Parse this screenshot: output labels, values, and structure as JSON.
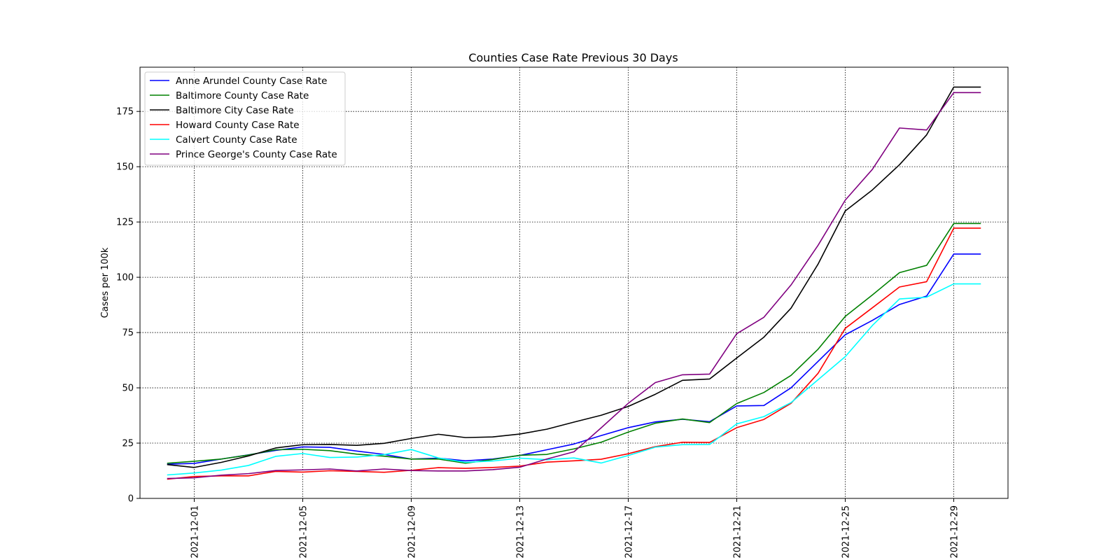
{
  "chart_data": {
    "type": "line",
    "title": "Counties Case Rate Previous 30 Days",
    "xlabel": "",
    "ylabel": "Cases per 100k",
    "x_start": "2021-11-30",
    "x": [
      "2021-11-30",
      "2021-12-01",
      "2021-12-02",
      "2021-12-03",
      "2021-12-04",
      "2021-12-05",
      "2021-12-06",
      "2021-12-07",
      "2021-12-08",
      "2021-12-09",
      "2021-12-10",
      "2021-12-11",
      "2021-12-12",
      "2021-12-13",
      "2021-12-14",
      "2021-12-15",
      "2021-12-16",
      "2021-12-17",
      "2021-12-18",
      "2021-12-19",
      "2021-12-20",
      "2021-12-21",
      "2021-12-22",
      "2021-12-23",
      "2021-12-24",
      "2021-12-25",
      "2021-12-26",
      "2021-12-27",
      "2021-12-28",
      "2021-12-29",
      "2021-12-30"
    ],
    "xticks": [
      "2021-12-01",
      "2021-12-05",
      "2021-12-09",
      "2021-12-13",
      "2021-12-17",
      "2021-12-21",
      "2021-12-25",
      "2021-12-29"
    ],
    "xlim": [
      "2021-11-29",
      "2021-12-31"
    ],
    "yticks": [
      0,
      25,
      50,
      75,
      100,
      125,
      150,
      175
    ],
    "ylim": [
      0,
      195
    ],
    "grid": true,
    "legend_position": "top-left",
    "series": [
      {
        "name": "Anne Arundel County Case Rate",
        "color": "#0000ff",
        "values": [
          15.5,
          15.8,
          17.8,
          19.7,
          21.7,
          23.3,
          23.1,
          21.4,
          19.9,
          17.8,
          18.2,
          17.0,
          17.8,
          19.4,
          22.0,
          24.6,
          28.4,
          32.0,
          34.6,
          35.8,
          34.7,
          41.8,
          42.0,
          50.0,
          62.0,
          74.0,
          80.5,
          87.7,
          91.5,
          110.5,
          110.5
        ]
      },
      {
        "name": "Baltimore County Case Rate",
        "color": "#008000",
        "values": [
          15.9,
          16.8,
          17.8,
          19.6,
          22.0,
          22.2,
          21.6,
          20.0,
          19.1,
          17.8,
          17.8,
          15.9,
          17.6,
          19.5,
          19.9,
          22.4,
          25.4,
          30.0,
          34.0,
          35.9,
          34.3,
          42.9,
          47.9,
          55.6,
          67.5,
          82.3,
          92.0,
          102.1,
          105.4,
          124.3,
          124.3
        ]
      },
      {
        "name": "Baltimore City Case Rate",
        "color": "#000000",
        "values": [
          15.3,
          14.0,
          16.3,
          19.2,
          22.8,
          24.3,
          24.4,
          24.0,
          24.9,
          27.1,
          29.0,
          27.5,
          27.8,
          29.1,
          31.3,
          34.5,
          37.6,
          41.6,
          47.1,
          53.4,
          54.0,
          63.5,
          72.9,
          86.0,
          106.0,
          130.0,
          139.5,
          150.9,
          164.4,
          186.0,
          186.0
        ]
      },
      {
        "name": "Howard County Case Rate",
        "color": "#ff0000",
        "values": [
          8.7,
          9.9,
          10.2,
          10.2,
          12.2,
          11.9,
          12.5,
          12.2,
          11.8,
          12.7,
          13.9,
          13.6,
          14.0,
          14.6,
          16.4,
          17.0,
          17.7,
          20.2,
          23.4,
          25.4,
          25.3,
          32.0,
          35.7,
          43.0,
          56.6,
          76.9,
          86.2,
          95.6,
          98.0,
          122.2,
          122.2
        ]
      },
      {
        "name": "Calvert County Case Rate",
        "color": "#00ffff",
        "values": [
          10.6,
          11.5,
          12.8,
          14.9,
          19.0,
          20.3,
          18.5,
          18.7,
          19.8,
          22.1,
          18.3,
          16.3,
          16.9,
          18.2,
          17.5,
          18.3,
          16.0,
          19.4,
          23.2,
          24.3,
          24.4,
          33.7,
          37.0,
          43.3,
          53.7,
          64.1,
          78.2,
          90.2,
          91.0,
          97.0,
          97.0
        ]
      },
      {
        "name": "Prince George's County Case Rate",
        "color": "#800080",
        "values": [
          9.0,
          9.3,
          10.5,
          11.2,
          12.6,
          12.9,
          13.3,
          12.4,
          13.3,
          12.6,
          12.4,
          12.4,
          13.0,
          14.1,
          17.8,
          21.1,
          31.9,
          43.0,
          52.4,
          55.9,
          56.2,
          74.5,
          81.9,
          96.5,
          114.5,
          134.9,
          148.8,
          167.5,
          166.6,
          183.5,
          183.5
        ]
      }
    ]
  }
}
